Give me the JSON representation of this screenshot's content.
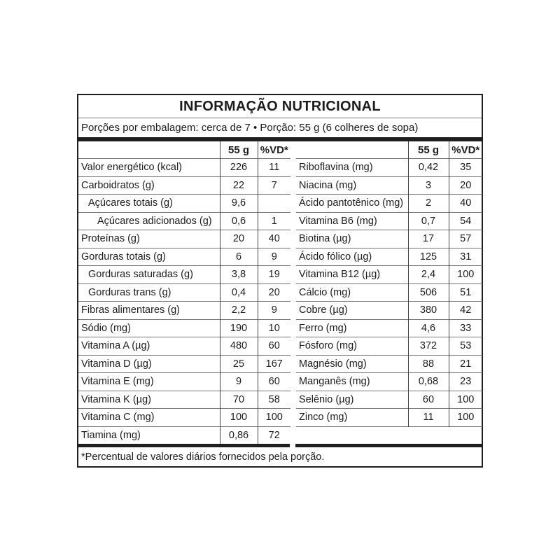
{
  "title": "INFORMAÇÃO NUTRICIONAL",
  "servings_line": "Porções por embalagem: cerca de 7 • Porção: 55 g (6 colheres de sopa)",
  "columns": {
    "amount": "55 g",
    "dv": "%VD*"
  },
  "footnote": "*Percentual de valores diários fornecidos pela porção.",
  "colors": {
    "text": "#1c1c1c",
    "outer_border": "#1f1f1f",
    "thick_bar": "#1f1f1f",
    "row_line": "#757575",
    "column_divider": "#454545",
    "background": "#ffffff"
  },
  "tables": {
    "left": {
      "rows": [
        {
          "label": "Valor energético (kcal)",
          "indent": 0,
          "amount": "226",
          "dv": "11"
        },
        {
          "label": "Carboidratos (g)",
          "indent": 0,
          "amount": "22",
          "dv": "7"
        },
        {
          "label": "Açúcares totais (g)",
          "indent": 1,
          "amount": "9,6",
          "dv": ""
        },
        {
          "label": "Açúcares adicionados (g)",
          "indent": 2,
          "amount": "0,6",
          "dv": "1"
        },
        {
          "label": "Proteínas (g)",
          "indent": 0,
          "amount": "20",
          "dv": "40"
        },
        {
          "label": "Gorduras totais (g)",
          "indent": 0,
          "amount": "6",
          "dv": "9"
        },
        {
          "label": "Gorduras saturadas (g)",
          "indent": 1,
          "amount": "3,8",
          "dv": "19"
        },
        {
          "label": "Gorduras trans (g)",
          "indent": 1,
          "amount": "0,4",
          "dv": "20"
        },
        {
          "label": "Fibras alimentares (g)",
          "indent": 0,
          "amount": "2,2",
          "dv": "9"
        },
        {
          "label": "Sódio (mg)",
          "indent": 0,
          "amount": "190",
          "dv": "10"
        },
        {
          "label": "Vitamina A (µg)",
          "indent": 0,
          "amount": "480",
          "dv": "60"
        },
        {
          "label": "Vitamina D (µg)",
          "indent": 0,
          "amount": "25",
          "dv": "167"
        },
        {
          "label": "Vitamina E (mg)",
          "indent": 0,
          "amount": "9",
          "dv": "60"
        },
        {
          "label": "Vitamina K (µg)",
          "indent": 0,
          "amount": "70",
          "dv": "58"
        },
        {
          "label": "Vitamina C (mg)",
          "indent": 0,
          "amount": "100",
          "dv": "100"
        },
        {
          "label": "Tiamina (mg)",
          "indent": 0,
          "amount": "0,86",
          "dv": "72"
        }
      ]
    },
    "right": {
      "rows": [
        {
          "label": "Riboflavina (mg)",
          "indent": 0,
          "amount": "0,42",
          "dv": "35"
        },
        {
          "label": "Niacina (mg)",
          "indent": 0,
          "amount": "3",
          "dv": "20"
        },
        {
          "label": "Ácido pantotênico (mg)",
          "indent": 0,
          "amount": "2",
          "dv": "40"
        },
        {
          "label": "Vitamina B6 (mg)",
          "indent": 0,
          "amount": "0,7",
          "dv": "54"
        },
        {
          "label": "Biotina (µg)",
          "indent": 0,
          "amount": "17",
          "dv": "57"
        },
        {
          "label": "Ácido fólico (µg)",
          "indent": 0,
          "amount": "125",
          "dv": "31"
        },
        {
          "label": "Vitamina B12 (µg)",
          "indent": 0,
          "amount": "2,4",
          "dv": "100"
        },
        {
          "label": "Cálcio (mg)",
          "indent": 0,
          "amount": "506",
          "dv": "51"
        },
        {
          "label": "Cobre (µg)",
          "indent": 0,
          "amount": "380",
          "dv": "42"
        },
        {
          "label": "Ferro (mg)",
          "indent": 0,
          "amount": "4,6",
          "dv": "33"
        },
        {
          "label": "Fósforo (mg)",
          "indent": 0,
          "amount": "372",
          "dv": "53"
        },
        {
          "label": "Magnésio (mg)",
          "indent": 0,
          "amount": "88",
          "dv": "21"
        },
        {
          "label": "Manganês (mg)",
          "indent": 0,
          "amount": "0,68",
          "dv": "23"
        },
        {
          "label": "Selênio (µg)",
          "indent": 0,
          "amount": "60",
          "dv": "100"
        },
        {
          "label": "Zinco (mg)",
          "indent": 0,
          "amount": "11",
          "dv": "100"
        }
      ]
    }
  }
}
